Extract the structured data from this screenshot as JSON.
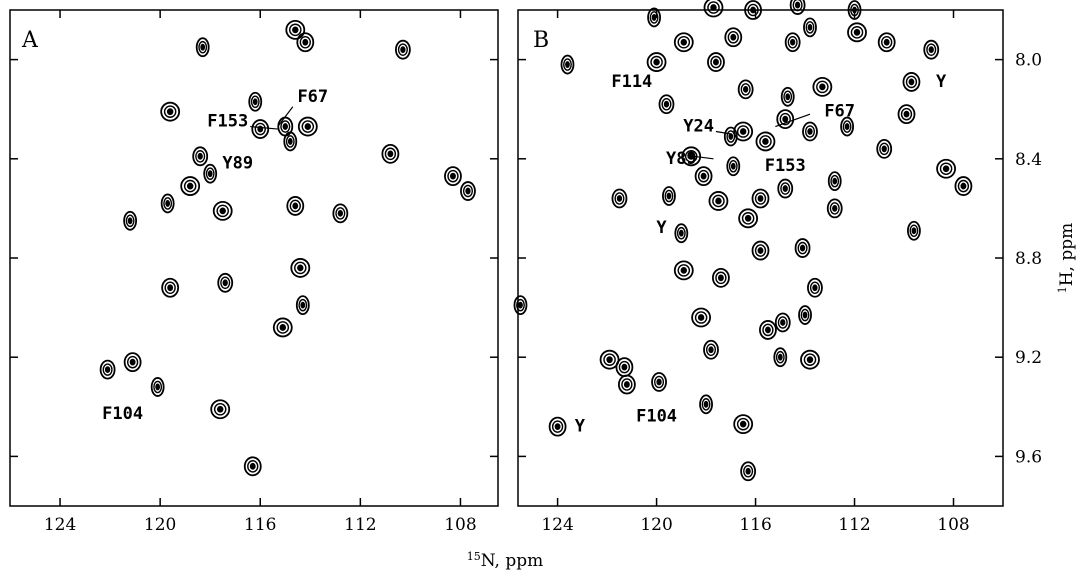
{
  "chart_data": [
    {
      "type": "scatter",
      "panel_label": "A",
      "xlim": [
        126,
        106.5
      ],
      "ylim": [
        9.8,
        7.8
      ],
      "xticks": [
        124,
        120,
        116,
        112,
        108
      ],
      "points": [
        {
          "x": 118.3,
          "y": 7.95
        },
        {
          "x": 114.6,
          "y": 7.88
        },
        {
          "x": 114.2,
          "y": 7.93
        },
        {
          "x": 110.3,
          "y": 7.96
        },
        {
          "x": 116.2,
          "y": 8.17
        },
        {
          "x": 119.6,
          "y": 8.21
        },
        {
          "x": 116.0,
          "y": 8.28
        },
        {
          "x": 115.0,
          "y": 8.27
        },
        {
          "x": 114.8,
          "y": 8.33
        },
        {
          "x": 114.1,
          "y": 8.27
        },
        {
          "x": 110.8,
          "y": 8.38
        },
        {
          "x": 118.4,
          "y": 8.39
        },
        {
          "x": 118.0,
          "y": 8.46
        },
        {
          "x": 118.8,
          "y": 8.51
        },
        {
          "x": 108.3,
          "y": 8.47
        },
        {
          "x": 107.7,
          "y": 8.53
        },
        {
          "x": 119.7,
          "y": 8.58
        },
        {
          "x": 117.5,
          "y": 8.61
        },
        {
          "x": 114.6,
          "y": 8.59
        },
        {
          "x": 112.8,
          "y": 8.62
        },
        {
          "x": 121.2,
          "y": 8.65
        },
        {
          "x": 114.4,
          "y": 8.84
        },
        {
          "x": 119.6,
          "y": 8.92
        },
        {
          "x": 117.4,
          "y": 8.9
        },
        {
          "x": 114.3,
          "y": 8.99
        },
        {
          "x": 115.1,
          "y": 9.08
        },
        {
          "x": 121.1,
          "y": 9.22
        },
        {
          "x": 122.1,
          "y": 9.25
        },
        {
          "x": 120.1,
          "y": 9.32
        },
        {
          "x": 117.6,
          "y": 9.41
        },
        {
          "x": 116.3,
          "y": 9.64
        }
      ],
      "labels": [
        {
          "text": "F67",
          "x": 113.9,
          "y": 8.17
        },
        {
          "text": "F153",
          "x": 117.3,
          "y": 8.27
        },
        {
          "text": "Y89",
          "x": 116.9,
          "y": 8.44
        },
        {
          "text": "F104",
          "x": 121.5,
          "y": 9.45
        }
      ]
    },
    {
      "type": "scatter",
      "panel_label": "B",
      "xlim": [
        125.6,
        106
      ],
      "ylim": [
        9.8,
        7.8
      ],
      "xticks": [
        124,
        120,
        116,
        112,
        108
      ],
      "yticks": [
        8.0,
        8.4,
        8.8,
        9.2,
        9.6
      ],
      "ylabel": "H, ppm",
      "ylabel_sup": "1",
      "points": [
        {
          "x": 120.1,
          "y": 7.83
        },
        {
          "x": 117.7,
          "y": 7.79
        },
        {
          "x": 116.1,
          "y": 7.8
        },
        {
          "x": 114.3,
          "y": 7.78
        },
        {
          "x": 112.0,
          "y": 7.8
        },
        {
          "x": 118.9,
          "y": 7.93
        },
        {
          "x": 116.9,
          "y": 7.91
        },
        {
          "x": 114.5,
          "y": 7.93
        },
        {
          "x": 113.8,
          "y": 7.87
        },
        {
          "x": 111.9,
          "y": 7.89
        },
        {
          "x": 110.7,
          "y": 7.93
        },
        {
          "x": 108.9,
          "y": 7.96
        },
        {
          "x": 123.6,
          "y": 8.02
        },
        {
          "x": 120.0,
          "y": 8.01
        },
        {
          "x": 117.6,
          "y": 8.01
        },
        {
          "x": 116.4,
          "y": 8.12
        },
        {
          "x": 114.7,
          "y": 8.15
        },
        {
          "x": 113.3,
          "y": 8.11
        },
        {
          "x": 109.7,
          "y": 8.09
        },
        {
          "x": 119.6,
          "y": 8.18
        },
        {
          "x": 117.0,
          "y": 8.31
        },
        {
          "x": 116.5,
          "y": 8.29
        },
        {
          "x": 114.8,
          "y": 8.24
        },
        {
          "x": 113.8,
          "y": 8.29
        },
        {
          "x": 112.3,
          "y": 8.27
        },
        {
          "x": 115.6,
          "y": 8.33
        },
        {
          "x": 109.9,
          "y": 8.22
        },
        {
          "x": 110.8,
          "y": 8.36
        },
        {
          "x": 116.9,
          "y": 8.43
        },
        {
          "x": 118.6,
          "y": 8.39
        },
        {
          "x": 118.1,
          "y": 8.47
        },
        {
          "x": 114.8,
          "y": 8.52
        },
        {
          "x": 112.8,
          "y": 8.49
        },
        {
          "x": 108.3,
          "y": 8.44
        },
        {
          "x": 107.6,
          "y": 8.51
        },
        {
          "x": 121.5,
          "y": 8.56
        },
        {
          "x": 119.5,
          "y": 8.55
        },
        {
          "x": 117.5,
          "y": 8.57
        },
        {
          "x": 115.8,
          "y": 8.56
        },
        {
          "x": 112.8,
          "y": 8.6
        },
        {
          "x": 119.0,
          "y": 8.7
        },
        {
          "x": 116.3,
          "y": 8.64
        },
        {
          "x": 115.8,
          "y": 8.77
        },
        {
          "x": 114.1,
          "y": 8.76
        },
        {
          "x": 109.6,
          "y": 8.69
        },
        {
          "x": 118.9,
          "y": 8.85
        },
        {
          "x": 117.4,
          "y": 8.88
        },
        {
          "x": 113.6,
          "y": 8.92
        },
        {
          "x": 125.5,
          "y": 8.99
        },
        {
          "x": 118.2,
          "y": 9.04
        },
        {
          "x": 115.5,
          "y": 9.09
        },
        {
          "x": 114.9,
          "y": 9.06
        },
        {
          "x": 114.0,
          "y": 9.03
        },
        {
          "x": 121.9,
          "y": 9.21
        },
        {
          "x": 121.3,
          "y": 9.24
        },
        {
          "x": 117.8,
          "y": 9.17
        },
        {
          "x": 115.0,
          "y": 9.2
        },
        {
          "x": 113.8,
          "y": 9.21
        },
        {
          "x": 121.2,
          "y": 9.31
        },
        {
          "x": 119.9,
          "y": 9.3
        },
        {
          "x": 118.0,
          "y": 9.39
        },
        {
          "x": 116.5,
          "y": 9.47
        },
        {
          "x": 124.0,
          "y": 9.48
        },
        {
          "x": 116.3,
          "y": 9.66
        }
      ],
      "labels": [
        {
          "text": "F114",
          "x": 121.0,
          "y": 8.11
        },
        {
          "text": "Y",
          "x": 108.5,
          "y": 8.11
        },
        {
          "text": "F67",
          "x": 112.6,
          "y": 8.23
        },
        {
          "text": "Y24",
          "x": 118.3,
          "y": 8.29
        },
        {
          "text": "Y89",
          "x": 119.0,
          "y": 8.42
        },
        {
          "text": "F153",
          "x": 114.8,
          "y": 8.45
        },
        {
          "text": "Y",
          "x": 119.8,
          "y": 8.7
        },
        {
          "text": "F104",
          "x": 120.0,
          "y": 9.46
        },
        {
          "text": "Y",
          "x": 123.1,
          "y": 9.5
        }
      ]
    }
  ],
  "shared_xlabel": "N, ppm",
  "shared_xlabel_sup": "15"
}
